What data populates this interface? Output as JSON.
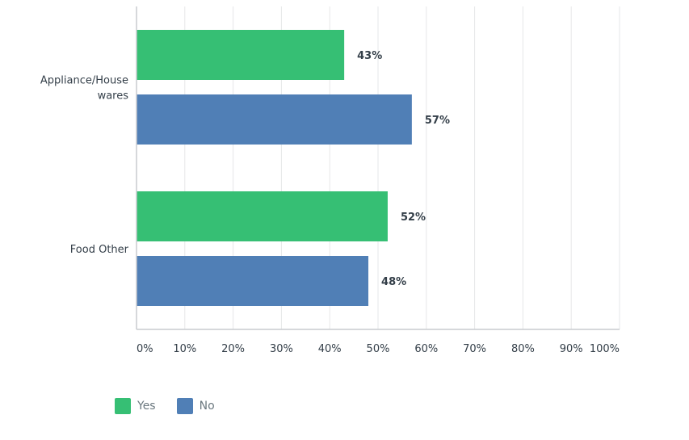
{
  "chart_data": {
    "type": "bar",
    "orientation": "horizontal",
    "categories": [
      "Appliance/House wares",
      "Food Other"
    ],
    "category_label_lines": [
      [
        "Appliance/House",
        "wares"
      ],
      [
        "Food Other"
      ]
    ],
    "series": [
      {
        "name": "Yes",
        "color": "#36bf74",
        "values": [
          43,
          52
        ],
        "labels": [
          "43%",
          "52%"
        ]
      },
      {
        "name": "No",
        "color": "#507fb6",
        "values": [
          57,
          48
        ],
        "labels": [
          "57%",
          "48%"
        ]
      }
    ],
    "xlim": [
      0,
      100
    ],
    "ticks": [
      0,
      10,
      20,
      30,
      40,
      50,
      60,
      70,
      80,
      90,
      100
    ],
    "tick_labels": [
      "0%",
      "10%",
      "20%",
      "30%",
      "40%",
      "50%",
      "60%",
      "70%",
      "80%",
      "90%",
      "100%"
    ],
    "grid": true,
    "legend_position": "bottom-left",
    "xlabel": "",
    "ylabel": ""
  }
}
